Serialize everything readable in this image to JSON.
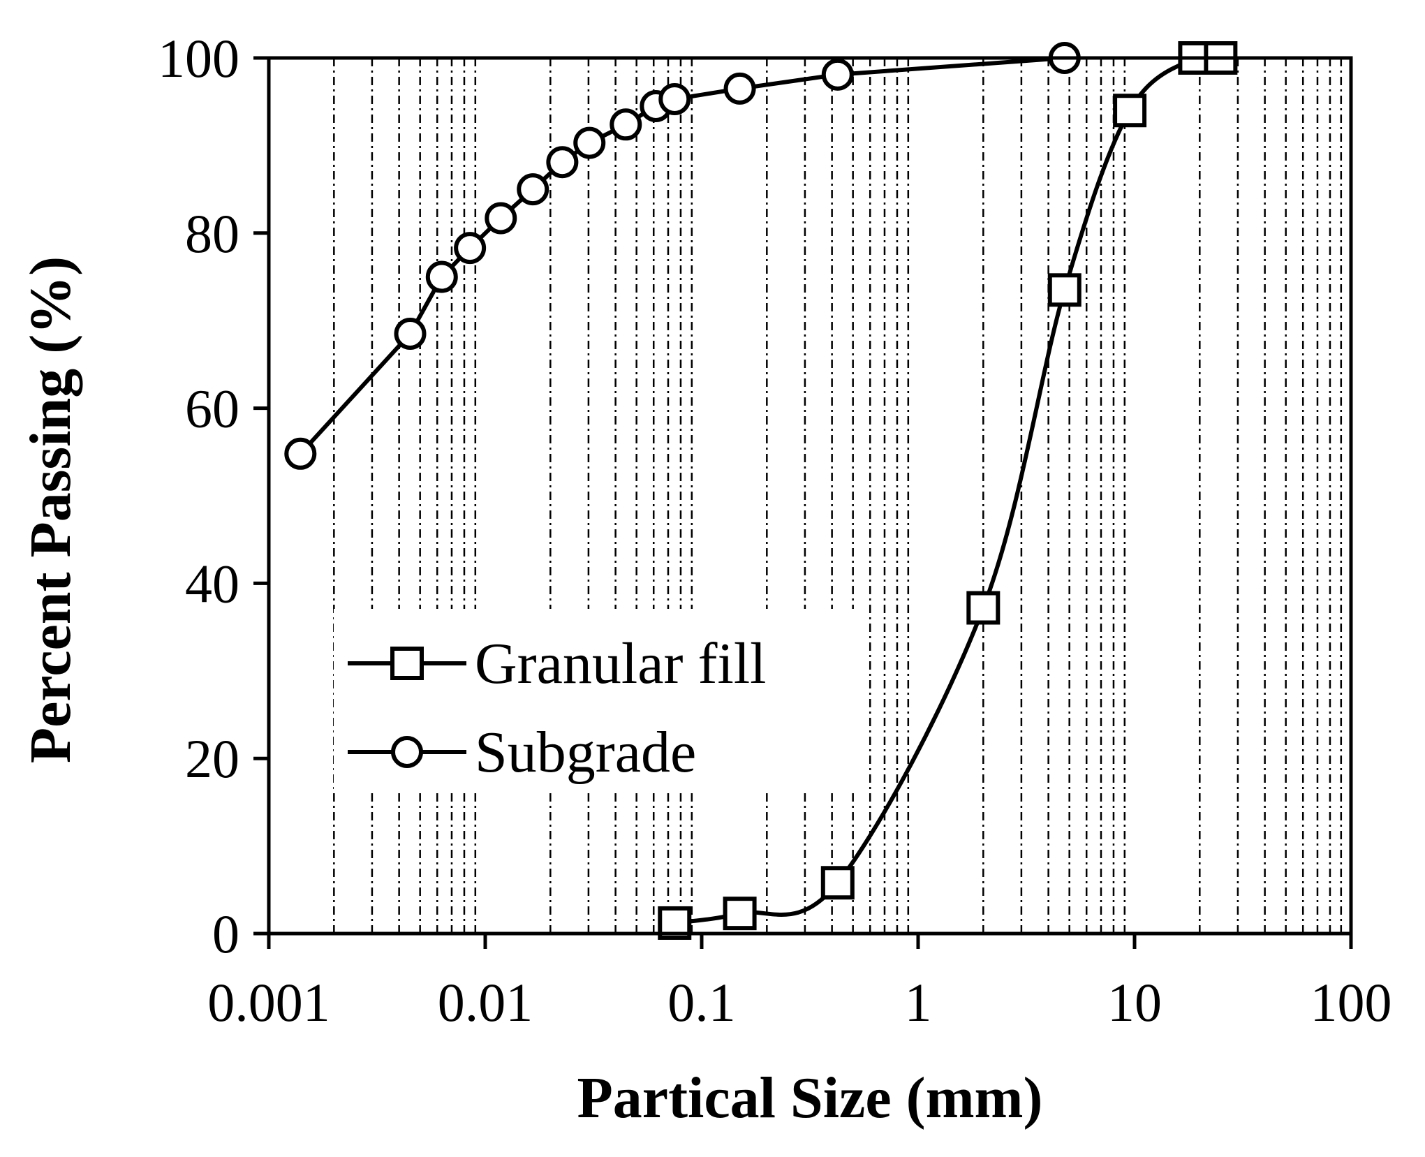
{
  "chart_data": {
    "type": "line",
    "title": "",
    "xlabel": "Partical Size (mm)",
    "ylabel": "Percent Passing (%)",
    "xscale": "log",
    "xlim": [
      0.001,
      100
    ],
    "ylim": [
      0,
      100
    ],
    "xticks": [
      0.001,
      0.01,
      0.1,
      1,
      10,
      100
    ],
    "xtick_labels": [
      "0.001",
      "0.01",
      "0.1",
      "1",
      "10",
      "100"
    ],
    "yticks": [
      0,
      20,
      40,
      60,
      80,
      100
    ],
    "ytick_labels": [
      "0",
      "20",
      "40",
      "60",
      "80",
      "100"
    ],
    "grid": "vertical minor dash-dot",
    "legend_position": "center-left",
    "series": [
      {
        "name": "Granular fill",
        "marker": "square",
        "smooth": true,
        "x": [
          0.075,
          0.15,
          0.425,
          2,
          4.75,
          9.5,
          19,
          25
        ],
        "y": [
          1.2,
          2.3,
          5.8,
          37.2,
          73.5,
          94,
          100,
          100
        ]
      },
      {
        "name": "Subgrade",
        "marker": "circle",
        "smooth": false,
        "x": [
          0.0014,
          0.0045,
          0.0063,
          0.0085,
          0.0118,
          0.0166,
          0.0227,
          0.0303,
          0.0446,
          0.0614,
          0.075,
          0.15,
          0.425,
          4.75
        ],
        "y": [
          54.8,
          68.5,
          75,
          78.3,
          81.7,
          85,
          88.1,
          90.3,
          92.4,
          94.5,
          95.3,
          96.5,
          98.1,
          100
        ]
      }
    ]
  }
}
